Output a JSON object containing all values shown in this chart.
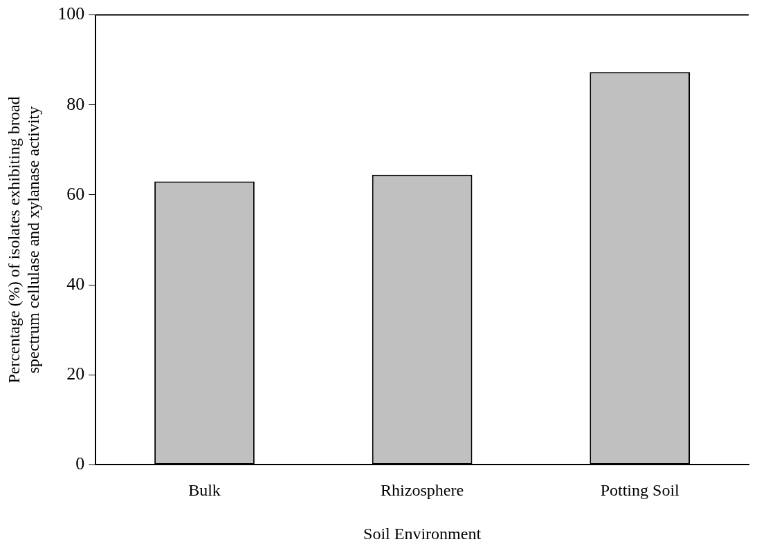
{
  "chart_data": {
    "type": "bar",
    "xlabel": "Soil Environment",
    "ylabel": "Percentage (%) of isolates exhibiting broad\nspectrum cellulase and xylanase activity",
    "categories": [
      "Bulk",
      "Rhizosphere",
      "Potting Soil"
    ],
    "values": [
      63,
      64.5,
      87.3
    ],
    "color": "#c0c0c0",
    "ylim": [
      0,
      100
    ],
    "yticks": [
      0,
      20,
      40,
      60,
      80,
      100
    ],
    "grid": false,
    "legend": false
  }
}
